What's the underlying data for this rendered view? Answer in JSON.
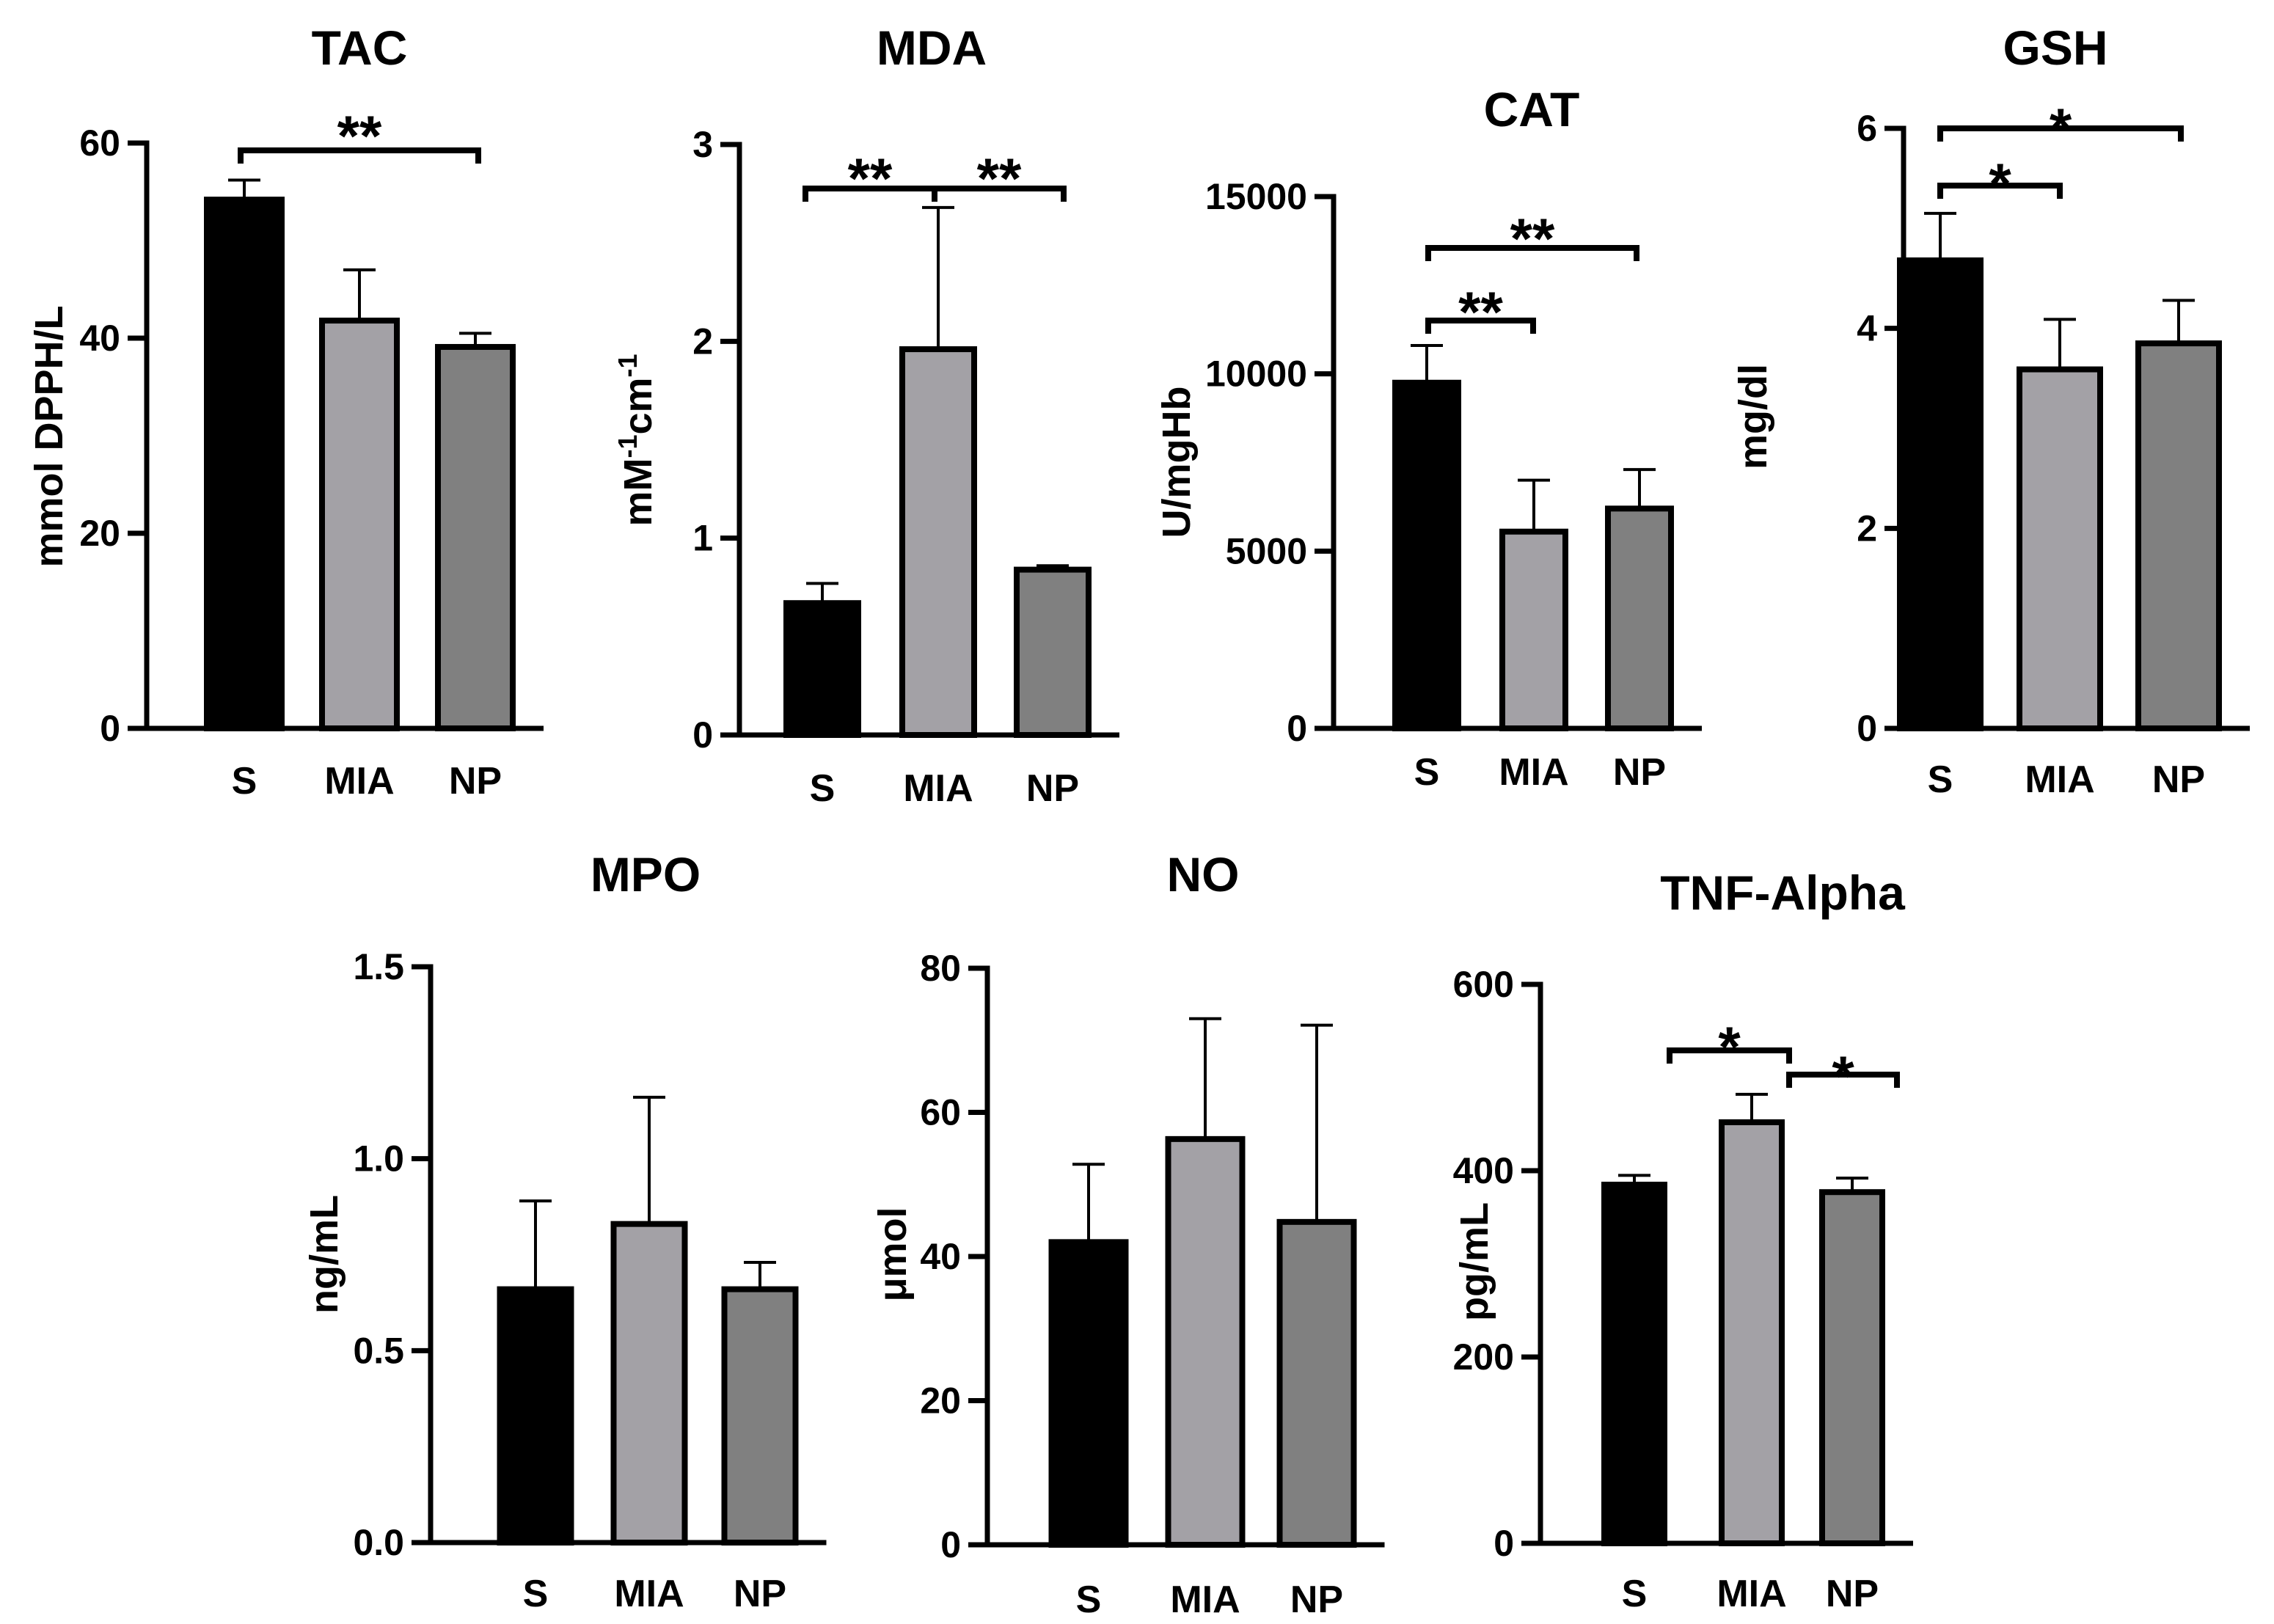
{
  "chart_data": [
    {
      "type": "bar",
      "title": "TAC",
      "ylabel": "mmol DPPH/L",
      "ylim": [
        0,
        60
      ],
      "yticks": [
        0,
        20,
        40,
        60
      ],
      "categories": [
        "S",
        "MIA",
        "NP"
      ],
      "values": [
        54.2,
        41.8,
        39.1
      ],
      "errors": [
        2.0,
        5.2,
        1.4
      ],
      "significance": [
        {
          "from": "S",
          "to": "NP",
          "label": "**"
        }
      ]
    },
    {
      "type": "bar",
      "title": "MDA",
      "ylabel": "mM-1cm-1",
      "ylabel_parts": [
        "mM",
        "-1",
        "cm",
        "-1"
      ],
      "ylim": [
        0,
        3
      ],
      "yticks": [
        0,
        1,
        2,
        3
      ],
      "categories": [
        "S",
        "MIA",
        "NP"
      ],
      "values": [
        0.67,
        1.96,
        0.84
      ],
      "errors": [
        0.1,
        0.72,
        0.02
      ],
      "significance": [
        {
          "from": "S",
          "to": "MIA",
          "label": "**"
        },
        {
          "from": "MIA",
          "to": "NP",
          "label": "**"
        }
      ]
    },
    {
      "type": "bar",
      "title": "CAT",
      "ylabel": "U/mgHb",
      "ylim": [
        0,
        15000
      ],
      "yticks": [
        0,
        5000,
        10000,
        15000
      ],
      "categories": [
        "S",
        "MIA",
        "NP"
      ],
      "values": [
        9750,
        5550,
        6200
      ],
      "errors": [
        1050,
        1450,
        1100
      ],
      "significance": [
        {
          "from": "S",
          "to": "MIA",
          "label": "**"
        },
        {
          "from": "S",
          "to": "NP",
          "label": "**"
        }
      ]
    },
    {
      "type": "bar",
      "title": "GSH",
      "ylabel": "mg/dl",
      "ylim": [
        0,
        6
      ],
      "yticks": [
        0,
        2,
        4,
        6
      ],
      "categories": [
        "S",
        "MIA",
        "NP"
      ],
      "values": [
        4.68,
        3.59,
        3.85
      ],
      "errors": [
        0.47,
        0.5,
        0.43
      ],
      "significance": [
        {
          "from": "S",
          "to": "MIA",
          "label": "*"
        },
        {
          "from": "S",
          "to": "NP",
          "label": "*"
        }
      ]
    },
    {
      "type": "bar",
      "title": "MPO",
      "ylabel": "ng/mL",
      "ylim": [
        0,
        1.5
      ],
      "yticks": [
        0.0,
        0.5,
        1.0,
        1.5
      ],
      "ytick_labels": [
        "0.0",
        "0.5",
        "1.0",
        "1.5"
      ],
      "categories": [
        "S",
        "MIA",
        "NP"
      ],
      "values": [
        0.66,
        0.83,
        0.66
      ],
      "errors": [
        0.23,
        0.33,
        0.07
      ],
      "significance": []
    },
    {
      "type": "bar",
      "title": "NO",
      "ylabel": "μmol",
      "ylim": [
        0,
        80
      ],
      "yticks": [
        0,
        20,
        40,
        60,
        80
      ],
      "categories": [
        "S",
        "MIA",
        "NP"
      ],
      "values": [
        42,
        56.3,
        44.8
      ],
      "errors": [
        10.8,
        16.7,
        27.3
      ],
      "significance": []
    },
    {
      "type": "bar",
      "title": "TNF-Alpha",
      "ylabel": "pg/mL",
      "ylim": [
        0,
        600
      ],
      "yticks": [
        0,
        200,
        400,
        600
      ],
      "categories": [
        "S",
        "MIA",
        "NP"
      ],
      "values": [
        385,
        452,
        377
      ],
      "errors": [
        10,
        30,
        15
      ],
      "significance": [
        {
          "from": "S",
          "to": "MIA",
          "label": "*"
        },
        {
          "from": "MIA",
          "to": "NP",
          "label": "*"
        }
      ]
    }
  ],
  "colors": {
    "S": "#000000",
    "MIA": "#a3a1a6",
    "NP": "#808080",
    "outline": "#000000"
  }
}
